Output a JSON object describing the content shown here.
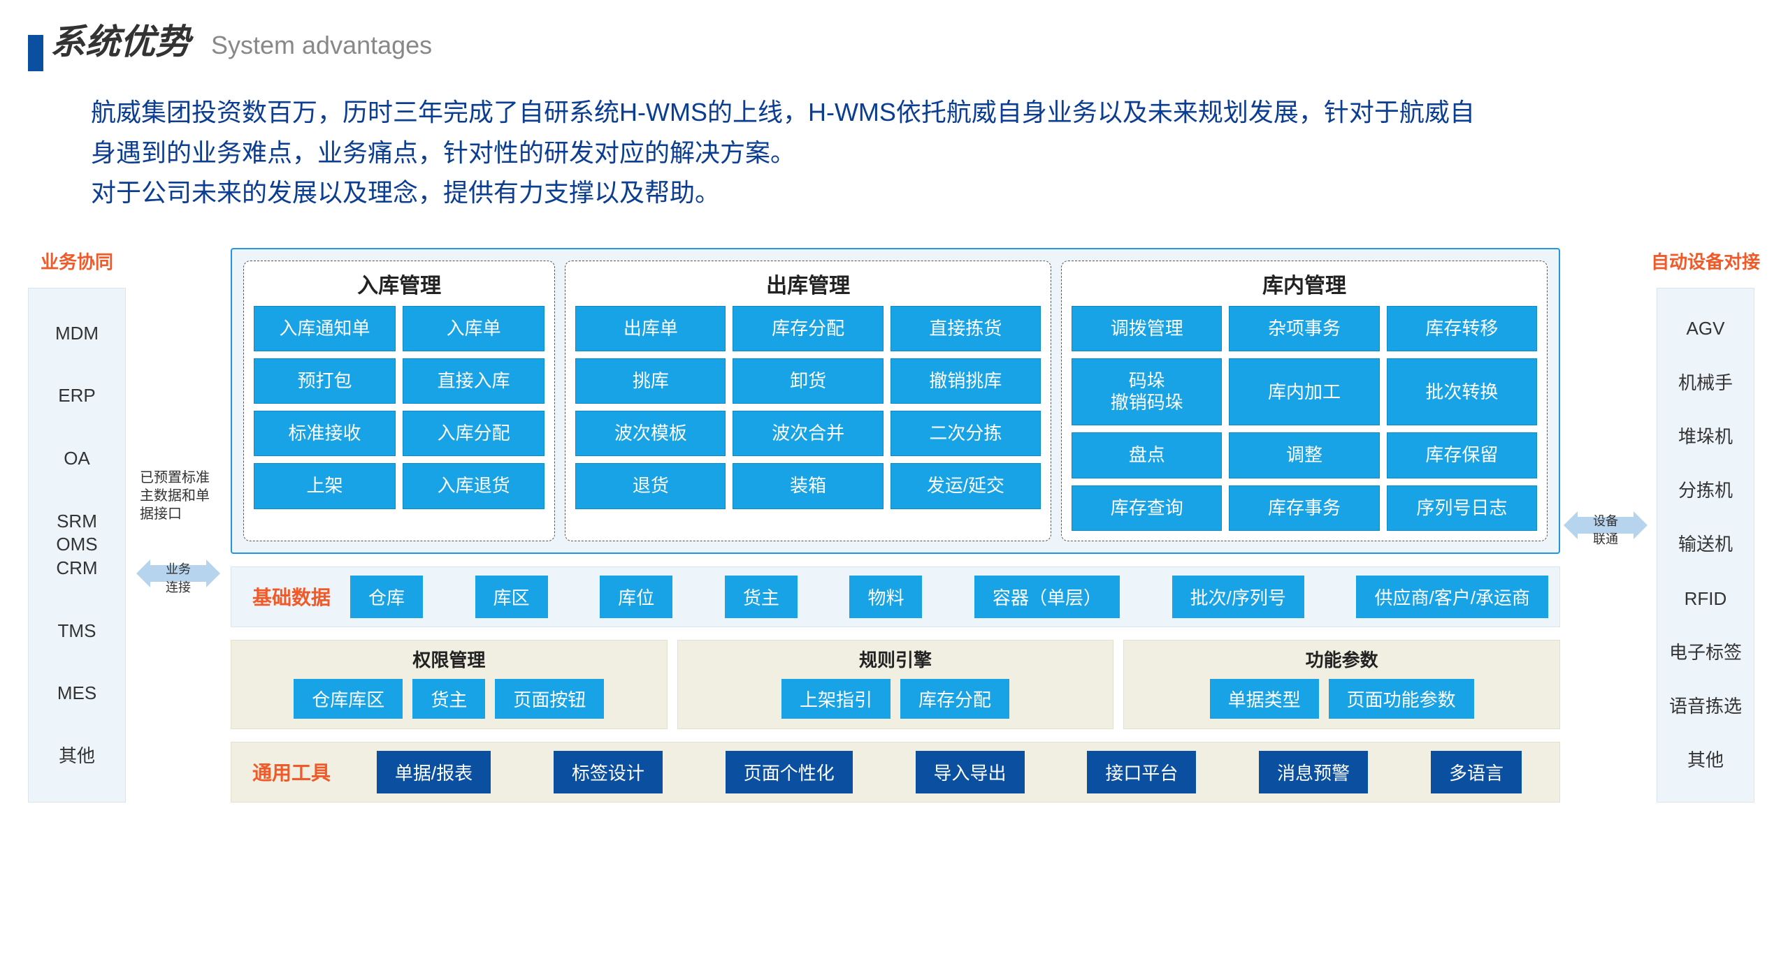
{
  "header": {
    "title_cn": "系统优势",
    "title_en": "System advantages",
    "intro_line1": "航威集团投资数百万，历时三年完成了自研系统H-WMS的上线，H-WMS依托航威自身业务以及未来规划发展，针对于航威自身遇到的业务难点，业务痛点，针对性的研发对应的解决方案。",
    "intro_line2": "对于公司未来的发展以及理念，提供有力支撑以及帮助。"
  },
  "colors": {
    "primary_blue": "#17a3e6",
    "dark_blue": "#0a4fa0",
    "accent_orange": "#f05a28",
    "panel_bg": "#eef5fa",
    "beige_bg": "#f0efe2",
    "text_dark": "#333333",
    "text_grey": "#888888"
  },
  "left": {
    "label": "业务协同",
    "items": [
      "MDM",
      "ERP",
      "OA",
      "SRM\nOMS\nCRM",
      "TMS",
      "MES",
      "其他"
    ],
    "connector_top": "已预置标准主数据和单据接口",
    "connector_arrow_label": "业务\n连接"
  },
  "right": {
    "label": "自动设备对接",
    "items": [
      "AGV",
      "机械手",
      "堆垛机",
      "分拣机",
      "输送机",
      "RFID",
      "电子标签",
      "语音拣选",
      "其他"
    ],
    "connector_arrow_label": "设备\n联通"
  },
  "mgmt": {
    "inbound": {
      "title": "入库管理",
      "cells": [
        "入库通知单",
        "入库单",
        "预打包",
        "直接入库",
        "标准接收",
        "入库分配",
        "上架",
        "入库退货"
      ]
    },
    "outbound": {
      "title": "出库管理",
      "cells": [
        "出库单",
        "库存分配",
        "直接拣货",
        "挑库",
        "卸货",
        "撤销挑库",
        "波次模板",
        "波次合并",
        "二次分拣",
        "退货",
        "装箱",
        "发运/延交"
      ]
    },
    "inhouse": {
      "title": "库内管理",
      "cells": [
        "调拨管理",
        "杂项事务",
        "库存转移",
        "码垛\n撤销码垛",
        "库内加工",
        "批次转换",
        "盘点",
        "调整",
        "库存保留",
        "库存查询",
        "库存事务",
        "序列号日志"
      ]
    }
  },
  "basic_data": {
    "label": "基础数据",
    "items": [
      "仓库",
      "库区",
      "库位",
      "货主",
      "物料",
      "容器（单层）",
      "批次/序列号",
      "供应商/客户/承运商"
    ]
  },
  "subgroups": {
    "perm": {
      "title": "权限管理",
      "items": [
        "仓库库区",
        "货主",
        "页面按钮"
      ]
    },
    "rule": {
      "title": "规则引擎",
      "items": [
        "上架指引",
        "库存分配"
      ]
    },
    "param": {
      "title": "功能参数",
      "items": [
        "单据类型",
        "页面功能参数"
      ]
    }
  },
  "tools": {
    "label": "通用工具",
    "items": [
      "单据/报表",
      "标签设计",
      "页面个性化",
      "导入导出",
      "接口平台",
      "消息预警",
      "多语言"
    ]
  }
}
